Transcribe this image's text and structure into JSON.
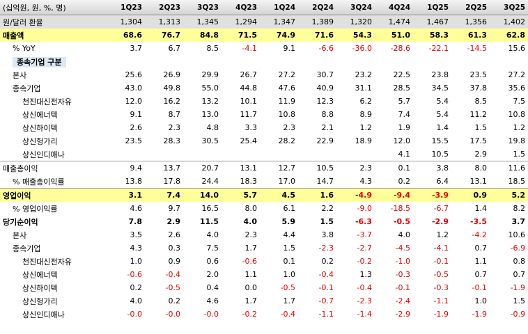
{
  "table": {
    "header": [
      "(십억원, 원, %, 명)",
      "1Q23",
      "2Q23",
      "3Q23",
      "4Q23",
      "1Q24",
      "2Q24",
      "3Q24",
      "4Q24",
      "1Q25",
      "2Q25",
      "3Q25"
    ],
    "rows": [
      [
        "원/달러 환율",
        "1,304",
        "1,313",
        "1,345",
        "1,294",
        "1,347",
        "1,389",
        "1,320",
        "1,474",
        "1,467",
        "1,356",
        "1,402"
      ],
      [
        "매출액",
        "68.6",
        "76.7",
        "84.8",
        "71.5",
        "74.9",
        "71.6",
        "54.3",
        "51.0",
        "58.3",
        "61.3",
        "62.8"
      ],
      [
        "% YoY",
        "3.7",
        "6.7",
        "8.5",
        "-4.1",
        "9.1",
        "-6.6",
        "-36.0",
        "-28.6",
        "-22.1",
        "-14.5",
        "15.6"
      ],
      [
        "종속기업 구분"
      ],
      [
        "본사",
        "25.6",
        "26.9",
        "29.9",
        "26.7",
        "27.2",
        "30.7",
        "23.2",
        "22.5",
        "23.8",
        "23.5",
        "27.2"
      ],
      [
        "종속기업",
        "43.0",
        "49.8",
        "55.0",
        "44.8",
        "47.6",
        "40.9",
        "31.1",
        "28.5",
        "34.5",
        "37.8",
        "35.6"
      ],
      [
        "천진대신전자유",
        "12.0",
        "16.2",
        "13.2",
        "10.1",
        "11.9",
        "12.3",
        "6.2",
        "5.7",
        "5.4",
        "8.5",
        "7.5"
      ],
      [
        "상신에너텍",
        "9.1",
        "8.7",
        "13.0",
        "11.7",
        "10.8",
        "8.8",
        "8.9",
        "7.4",
        "5.4",
        "11.2",
        "10.8"
      ],
      [
        "상신하이텍",
        "2.6",
        "2.3",
        "4.8",
        "3.3",
        "2.3",
        "2.1",
        "1.2",
        "1.9",
        "1.4",
        "1.5",
        "1.2"
      ],
      [
        "상신헝가리",
        "23.5",
        "28.3",
        "30.5",
        "25.4",
        "28.2",
        "22.9",
        "18.9",
        "12.0",
        "15.5",
        "17.5",
        "19.8"
      ],
      [
        "상신인디애나",
        null,
        null,
        null,
        null,
        null,
        null,
        null,
        "4.1",
        "10.5",
        "2.9",
        "1.5"
      ],
      [
        "매출총이익",
        "9.4",
        "13.7",
        "20.7",
        "13.1",
        "12.7",
        "10.5",
        "2.3",
        "0.1",
        "3.8",
        "8.0",
        "11.6"
      ],
      [
        "% 매출총이익률",
        "13.8",
        "17.8",
        "24.4",
        "18.3",
        "17.0",
        "14.7",
        "4.3",
        "0.2",
        "6.4",
        "13.1",
        "18.5"
      ],
      [
        "영업이익",
        "3.1",
        "7.4",
        "14.0",
        "5.7",
        "4.5",
        "1.6",
        "-4.9",
        "-9.4",
        "-3.9",
        "0.9",
        "5.2"
      ],
      [
        "% 영업이익률",
        "4.6",
        "9.7",
        "16.5",
        "8.0",
        "6.1",
        "2.2",
        "-9.0",
        "-18.5",
        "-6.7",
        "1.4",
        "8.2"
      ],
      [
        "당기순이익",
        "7.8",
        "2.9",
        "11.5",
        "4.0",
        "5.9",
        "1.5",
        "-6.3",
        "-0.5",
        "-2.9",
        "-3.5",
        "3.7"
      ],
      [
        "본사",
        "3.5",
        "2.6",
        "4.0",
        "2.3",
        "4.4",
        "3.8",
        "-3.7",
        "4.0",
        "1.2",
        "-4.2",
        "10.6"
      ],
      [
        "종속기업",
        "4.3",
        "0.3",
        "7.5",
        "1.7",
        "1.5",
        "-2.3",
        "-2.7",
        "-4.5",
        "-4.1",
        "0.7",
        "-6.9"
      ],
      [
        "천진대신전자유",
        "1.0",
        "0.9",
        "0.6",
        "-0.6",
        "0.1",
        "0.2",
        "-0.2",
        "-1.0",
        "-0.1",
        "1.1",
        "0.8"
      ],
      [
        "상신에너텍",
        "-0.6",
        "-0.4",
        "2.0",
        "1.1",
        "1.0",
        "-0.4",
        "1.3",
        "-0.3",
        "-0.5",
        "0.7",
        "0.7"
      ],
      [
        "상신하이텍",
        "0.2",
        "-0.5",
        "0.4",
        "0.0",
        "-0.5",
        "-0.1",
        "-0.4",
        "-0.1",
        "-0.3",
        "-0.1",
        "-1.9"
      ],
      [
        "상신헝가리",
        "4.0",
        "0.2",
        "4.6",
        "1.7",
        "1.7",
        "-0.7",
        "-2.3",
        "-2.4",
        "-1.1",
        "1.0",
        "1.5"
      ],
      [
        "상신인디애나",
        "-0.0",
        "-0.0",
        "-0.0",
        "-0.2",
        "-0.4",
        "-1.1",
        "-1.4",
        "-2.9",
        "-1.9",
        "-1.9",
        "-0.9"
      ]
    ]
  }
}
